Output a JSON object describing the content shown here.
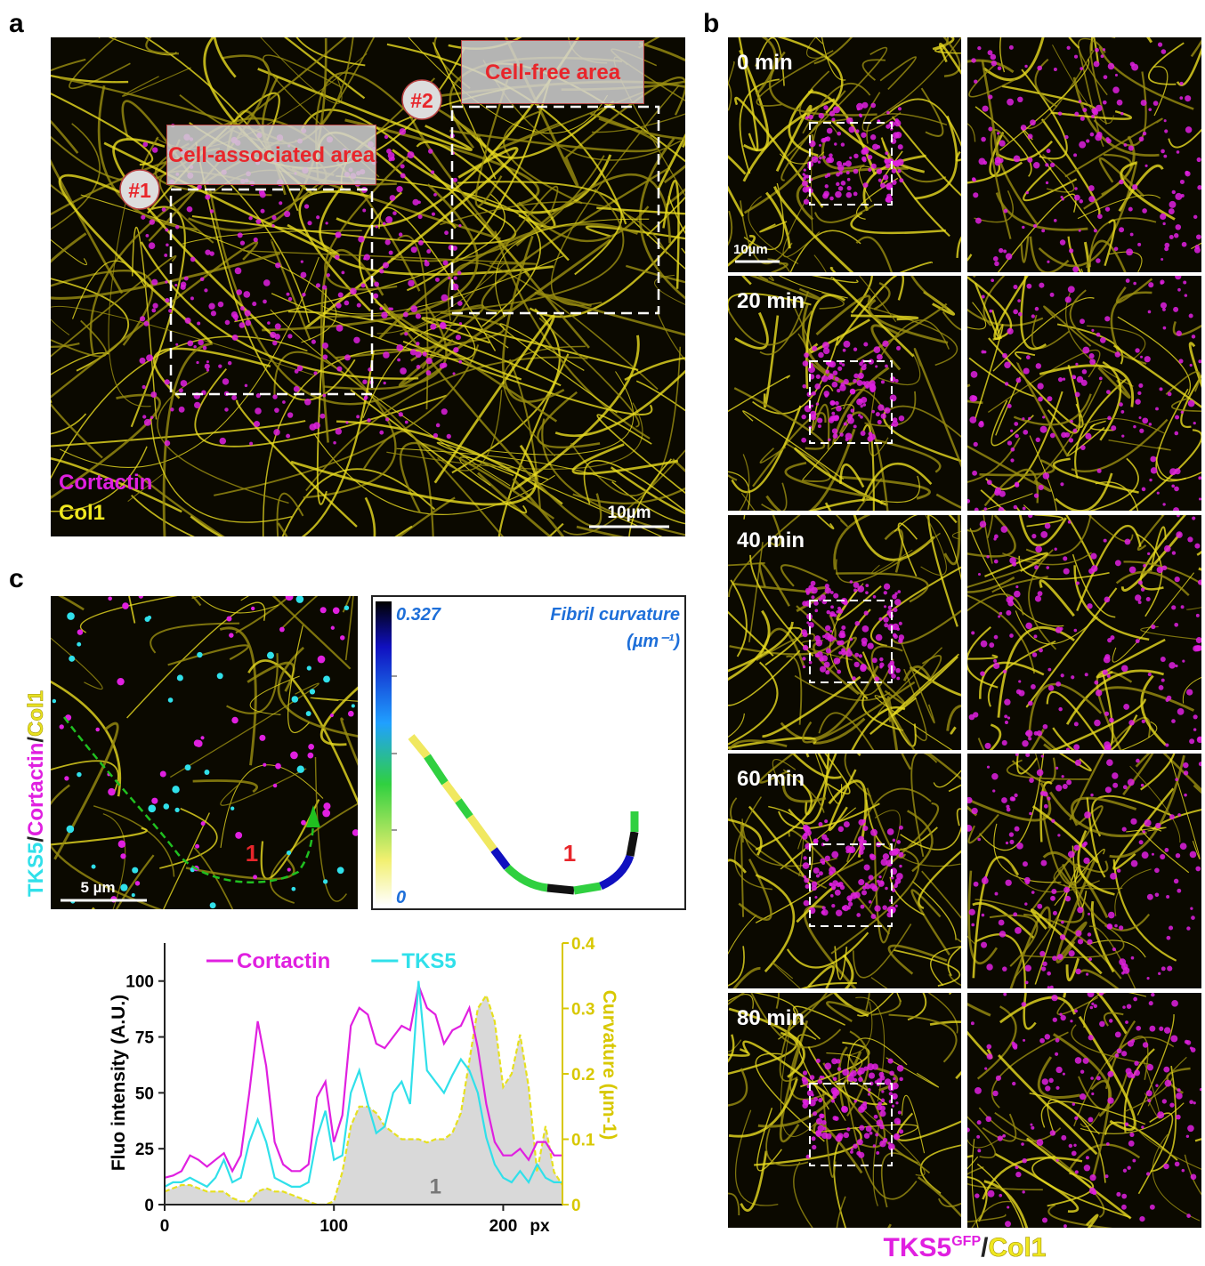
{
  "panel_labels": [
    "a",
    "b",
    "c"
  ],
  "panel_a": {
    "regions": [
      {
        "number": "#1",
        "label": "Cell-associated area"
      },
      {
        "number": "#2",
        "label": "Cell-free area"
      }
    ],
    "channels": [
      "Cortactin",
      "Col1"
    ],
    "scale_bar": "10µm"
  },
  "panel_b": {
    "times": [
      "0 min",
      "20 min",
      "40 min",
      "60 min",
      "80 min"
    ],
    "scale_bar": "10µm",
    "caption": {
      "protein": "TKS5",
      "tag": "GFP",
      "separator": "/",
      "collagen": "Col1"
    }
  },
  "panel_c": {
    "image": {
      "channels": [
        "TKS5",
        "Cortactin",
        "Col1"
      ],
      "separator": "/",
      "scale_bar": "5 µm",
      "marker": "1"
    },
    "curvature_map": {
      "title": "Fibril curvature",
      "unit": "(µm⁻¹)",
      "max_label": "0.327",
      "min_label": "0",
      "marker": "1"
    }
  },
  "chart_data": {
    "type": "line",
    "x_label": "px",
    "y_label": "Fluo intensity (A.U.)",
    "y2_label": "Curvature (µm-1)",
    "annotation": "1",
    "x": [
      0,
      5,
      10,
      15,
      20,
      25,
      30,
      35,
      40,
      45,
      50,
      55,
      60,
      65,
      70,
      75,
      80,
      85,
      90,
      95,
      100,
      105,
      110,
      115,
      120,
      125,
      130,
      135,
      140,
      145,
      150,
      155,
      160,
      165,
      170,
      175,
      180,
      185,
      190,
      195,
      200,
      205,
      210,
      215,
      220,
      225,
      230,
      235
    ],
    "series": [
      {
        "name": "Cortactin",
        "color": "#e020e0",
        "values": [
          12,
          13,
          15,
          22,
          20,
          17,
          20,
          23,
          15,
          22,
          50,
          82,
          62,
          28,
          18,
          15,
          15,
          18,
          48,
          55,
          28,
          40,
          80,
          88,
          85,
          72,
          70,
          75,
          80,
          78,
          98,
          88,
          85,
          72,
          78,
          80,
          88,
          70,
          45,
          28,
          22,
          22,
          25,
          20,
          28,
          28,
          22,
          22
        ]
      },
      {
        "name": "TKS5",
        "color": "#30e0ea",
        "values": [
          8,
          10,
          10,
          12,
          10,
          8,
          12,
          20,
          10,
          12,
          28,
          38,
          28,
          12,
          10,
          8,
          8,
          10,
          30,
          42,
          20,
          22,
          50,
          60,
          45,
          32,
          35,
          50,
          55,
          45,
          100,
          60,
          55,
          50,
          58,
          65,
          60,
          50,
          30,
          18,
          12,
          10,
          15,
          10,
          18,
          12,
          10,
          10
        ]
      },
      {
        "axis": "y2",
        "color": "#e6e020",
        "fill": "#d9d9d9",
        "dashed": true,
        "values": [
          0.02,
          0.025,
          0.03,
          0.03,
          0.025,
          0.02,
          0.02,
          0.02,
          0.01,
          0.005,
          0.005,
          0.02,
          0.025,
          0.02,
          0.02,
          0.015,
          0.01,
          0.005,
          0,
          0,
          0.005,
          0.05,
          0.12,
          0.15,
          0.15,
          0.14,
          0.12,
          0.11,
          0.1,
          0.1,
          0.1,
          0.095,
          0.1,
          0.1,
          0.11,
          0.14,
          0.22,
          0.3,
          0.32,
          0.28,
          0.18,
          0.2,
          0.26,
          0.18,
          0.05,
          0.12,
          0.05,
          0.03
        ]
      }
    ],
    "xlim": [
      0,
      235
    ],
    "xticks": [
      0,
      100,
      200
    ],
    "ylim": [
      0,
      117
    ],
    "yticks": [
      0,
      25,
      50,
      75,
      100
    ],
    "y2lim": [
      0,
      0.4
    ],
    "y2ticks": [
      0,
      0.1,
      0.2,
      0.3,
      0.4
    ],
    "y2_color": "#d8c800",
    "grid": false
  }
}
